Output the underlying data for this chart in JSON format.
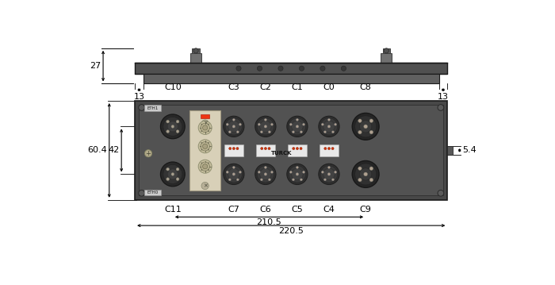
{
  "figsize": [
    7.0,
    3.59
  ],
  "dpi": 100,
  "bg_color": "#ffffff",
  "dim_27": "27",
  "dim_13_left": "13",
  "dim_13_right": "13",
  "dim_60_4": "60.4",
  "dim_42": "42",
  "dim_5_4": "5.4",
  "dim_210_5": "210.5",
  "dim_220_5": "220.5",
  "labels_top": [
    "C10",
    "C3",
    "C2",
    "C1",
    "C0",
    "C8"
  ],
  "labels_bottom": [
    "C11",
    "C7",
    "C6",
    "C5",
    "C4",
    "C9"
  ],
  "body_dark": "#4a4a4a",
  "body_mid": "#585858",
  "body_light": "#686868",
  "panel_bg": "#d0c8b0",
  "connector_outer": "#2a2a2a",
  "connector_inner": "#383838"
}
